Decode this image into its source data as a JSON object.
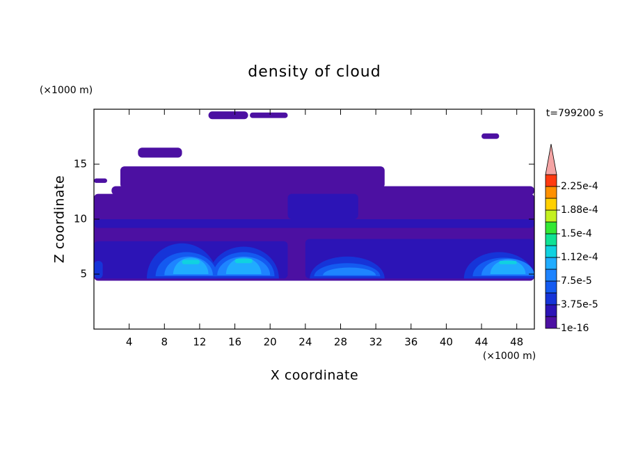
{
  "chart_data": {
    "type": "contour",
    "title": "density of cloud",
    "x_label": "X coordinate",
    "y_label": "Z coordinate",
    "x_unit": "(×1000 m)",
    "y_unit": "(×1000 m)",
    "time_label": "t=799200 s",
    "xlim": [
      0,
      50
    ],
    "ylim": [
      0,
      20
    ],
    "xticks": [
      4,
      8,
      12,
      16,
      20,
      24,
      28,
      32,
      36,
      40,
      44,
      48
    ],
    "yticks": [
      5,
      10,
      15
    ],
    "colorbar": {
      "levels": [
        1e-16,
        1.875e-05,
        3.75e-05,
        5.625e-05,
        7.5e-05,
        9.375e-05,
        0.0001125,
        0.00013125,
        0.00015,
        0.00016875,
        0.0001875,
        0.00020625,
        0.000225,
        0.00024375
      ],
      "colors": [
        "#4c10a2",
        "#2c14b6",
        "#1634d8",
        "#145af0",
        "#1e84ff",
        "#20acff",
        "#10d2e0",
        "#10e294",
        "#34e834",
        "#c4f020",
        "#ffd000",
        "#ff9000",
        "#ff3a10"
      ],
      "extend_color": "#f4a4a4",
      "ticks": [
        1e-16,
        {
          "value": 3.75e-05,
          "label": "3.75e-5"
        },
        {
          "value": 7.5e-05,
          "label": "7.5e-5"
        },
        {
          "value": 0.0001125,
          "label": "1.12e-4"
        },
        {
          "value": 0.00015,
          "label": "1.5e-4"
        },
        {
          "value": 0.0001875,
          "label": "1.88e-4"
        },
        {
          "value": 0.000225,
          "label": "2.25e-4"
        }
      ]
    },
    "regions": [
      {
        "shape": "rect",
        "x": [
          0,
          50
        ],
        "z": [
          4.4,
          12.3
        ],
        "value": 1e-16
      },
      {
        "shape": "rect",
        "x": [
          2,
          50
        ],
        "z": [
          12.2,
          13
        ],
        "value": 1e-16
      },
      {
        "shape": "rect",
        "x": [
          3,
          33
        ],
        "z": [
          12.8,
          14.8
        ],
        "value": 1e-16
      },
      {
        "shape": "rect",
        "x": [
          5,
          10
        ],
        "z": [
          15.6,
          16.5
        ],
        "value": 1e-16
      },
      {
        "shape": "rect",
        "x": [
          13,
          17.5
        ],
        "z": [
          19.1,
          19.8
        ],
        "value": 1e-16
      },
      {
        "shape": "rect",
        "x": [
          17.7,
          22
        ],
        "z": [
          19.2,
          19.7
        ],
        "value": 1e-16
      },
      {
        "shape": "rect",
        "x": [
          44,
          46
        ],
        "z": [
          17.3,
          17.8
        ],
        "value": 1e-16
      },
      {
        "shape": "rect",
        "x": [
          0,
          1.5
        ],
        "z": [
          13.3,
          13.7
        ],
        "value": 1e-16
      },
      {
        "shape": "rect",
        "x": [
          0,
          22
        ],
        "z": [
          4.6,
          8
        ],
        "value": 1.875e-05
      },
      {
        "shape": "rect",
        "x": [
          24,
          50
        ],
        "z": [
          4.6,
          8.2
        ],
        "value": 1.875e-05
      },
      {
        "shape": "rect",
        "x": [
          0,
          50
        ],
        "z": [
          9.2,
          10
        ],
        "value": 1.875e-05
      },
      {
        "shape": "rect",
        "x": [
          22,
          30
        ],
        "z": [
          10,
          12.3
        ],
        "value": 1.875e-05
      },
      {
        "shape": "arch",
        "x": [
          6,
          14
        ],
        "z": [
          4.6,
          7.8
        ],
        "value": 3.75e-05
      },
      {
        "shape": "arch",
        "x": [
          13,
          21
        ],
        "z": [
          4.6,
          7.5
        ],
        "value": 3.75e-05
      },
      {
        "shape": "arch",
        "x": [
          24.5,
          33
        ],
        "z": [
          4.6,
          6.6
        ],
        "value": 3.75e-05
      },
      {
        "shape": "arch",
        "x": [
          42,
          50
        ],
        "z": [
          4.6,
          7
        ],
        "value": 3.75e-05
      },
      {
        "shape": "rect",
        "x": [
          0,
          1
        ],
        "z": [
          4.6,
          6.2
        ],
        "value": 3.75e-05
      },
      {
        "shape": "arch",
        "x": [
          7,
          14
        ],
        "z": [
          4.8,
          7
        ],
        "value": 5.625e-05
      },
      {
        "shape": "arch",
        "x": [
          13.5,
          20.5
        ],
        "z": [
          4.8,
          7
        ],
        "value": 5.625e-05
      },
      {
        "shape": "arch",
        "x": [
          25,
          32.5
        ],
        "z": [
          4.8,
          6
        ],
        "value": 5.625e-05
      },
      {
        "shape": "arch",
        "x": [
          43,
          50
        ],
        "z": [
          4.8,
          6.5
        ],
        "value": 5.625e-05
      },
      {
        "shape": "arch",
        "x": [
          8,
          13.5
        ],
        "z": [
          4.9,
          6.6
        ],
        "value": 7.5e-05
      },
      {
        "shape": "arch",
        "x": [
          14,
          20
        ],
        "z": [
          4.9,
          6.6
        ],
        "value": 7.5e-05
      },
      {
        "shape": "arch",
        "x": [
          26,
          32
        ],
        "z": [
          4.9,
          5.6
        ],
        "value": 7.5e-05
      },
      {
        "shape": "arch",
        "x": [
          44,
          50
        ],
        "z": [
          4.9,
          6.4
        ],
        "value": 7.5e-05
      },
      {
        "shape": "arch",
        "x": [
          9,
          13
        ],
        "z": [
          5,
          6.5
        ],
        "value": 9.375e-05
      },
      {
        "shape": "arch",
        "x": [
          15,
          19
        ],
        "z": [
          5,
          6.5
        ],
        "value": 9.375e-05
      },
      {
        "shape": "arch",
        "x": [
          45,
          49
        ],
        "z": [
          5,
          6.3
        ],
        "value": 9.375e-05
      },
      {
        "shape": "rect",
        "x": [
          10,
          12
        ],
        "z": [
          5.9,
          6.3
        ],
        "value": 0.0001125
      },
      {
        "shape": "rect",
        "x": [
          16,
          18
        ],
        "z": [
          6,
          6.4
        ],
        "value": 0.0001125
      },
      {
        "shape": "rect",
        "x": [
          46,
          48
        ],
        "z": [
          5.9,
          6.2
        ],
        "value": 0.0001125
      }
    ]
  }
}
